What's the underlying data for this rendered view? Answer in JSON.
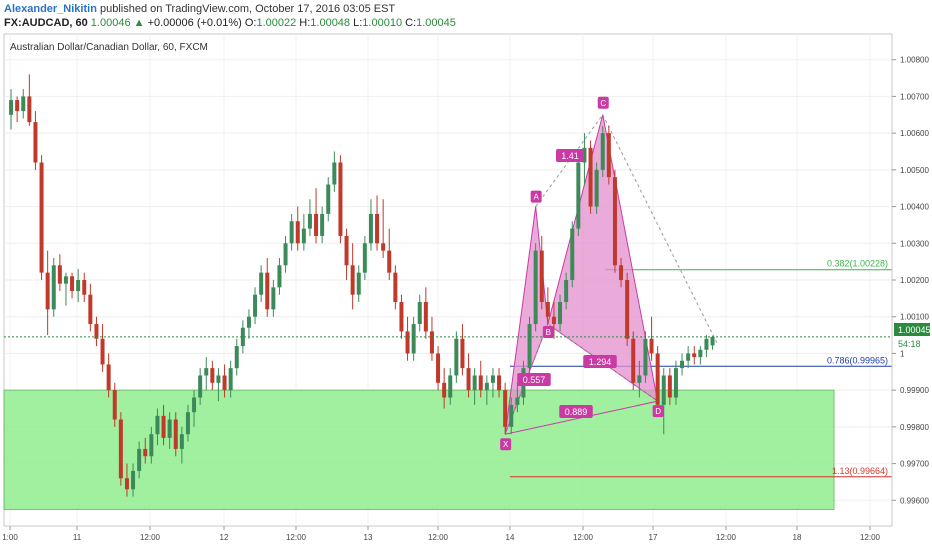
{
  "header": {
    "author": "Alexander_Nikitin",
    "published": " published on TradingView.com, October 17, 2016 03:05 EST",
    "symbol": "FX:AUDCAD, 60",
    "last": "1.00046",
    "arrow": "▲",
    "change": "+0.00006 (+0.01%)",
    "o_label": "O:",
    "o_val": "1.00022",
    "h_label": "H:",
    "h_val": "1.00048",
    "l_label": "L:",
    "l_val": "1.00010",
    "c_label": "C:",
    "c_val": "1.00045"
  },
  "colors": {
    "up": "#3c8a5a",
    "down": "#c0392b",
    "zone": "#90ee90",
    "pattern": "#c93aa5",
    "pattern_fill": "#e48fce",
    "fib_green": "#3bb44a",
    "fib_blue": "#1f3ea8",
    "fib_red": "#d9342b"
  },
  "chart_data": {
    "type": "candlestick",
    "title": "Australian Dollar/Canadian Dollar, 60, FXCM",
    "ylim": [
      0.9953,
      1.0087
    ],
    "y_ticks": [
      "1.00800",
      "1.00700",
      "1.00600",
      "1.00500",
      "1.00400",
      "1.00300",
      "1.00200",
      "1.00100",
      "1",
      "0.99900",
      "0.99800",
      "0.99700",
      "0.99600"
    ],
    "x_ticks": [
      "1:00",
      "11",
      "12:00",
      "12",
      "12:00",
      "13",
      "12:00",
      "14",
      "12:00",
      "17",
      "12:00",
      "18",
      "12:00"
    ],
    "price_label": "1.00045",
    "time_label": "54:18",
    "current_price": 1.00045,
    "candles": [
      [
        1.0065,
        1.0072,
        1.0061,
        1.0069
      ],
      [
        1.0069,
        1.007,
        1.0063,
        1.0066
      ],
      [
        1.0066,
        1.0072,
        1.0064,
        1.007
      ],
      [
        1.007,
        1.0076,
        1.0062,
        1.0063
      ],
      [
        1.0063,
        1.0066,
        1.005,
        1.0052
      ],
      [
        1.0052,
        1.0054,
        1.002,
        1.0022
      ],
      [
        1.0022,
        1.0028,
        1.0005,
        1.0012
      ],
      [
        1.0012,
        1.0026,
        1.001,
        1.0024
      ],
      [
        1.0024,
        1.0027,
        1.0017,
        1.0019
      ],
      [
        1.0019,
        1.0022,
        1.0013,
        1.0021
      ],
      [
        1.0021,
        1.0022,
        1.0015,
        1.0017
      ],
      [
        1.0017,
        1.0023,
        1.0014,
        1.002
      ],
      [
        1.002,
        1.0022,
        1.0014,
        1.0016
      ],
      [
        1.0016,
        1.0019,
        1.0006,
        1.0008
      ],
      [
        1.0008,
        1.001,
        1.0002,
        1.0004
      ],
      [
        1.0004,
        1.0008,
        0.9995,
        0.9997
      ],
      [
        0.9997,
        1.0,
        0.9988,
        0.999
      ],
      [
        0.999,
        0.9992,
        0.998,
        0.9982
      ],
      [
        0.9982,
        0.9984,
        0.9964,
        0.9966
      ],
      [
        0.9966,
        0.997,
        0.9961,
        0.9963
      ],
      [
        0.9963,
        0.997,
        0.9961,
        0.9968
      ],
      [
        0.9968,
        0.9976,
        0.9966,
        0.9974
      ],
      [
        0.9974,
        0.9977,
        0.997,
        0.9972
      ],
      [
        0.9972,
        0.998,
        0.997,
        0.9978
      ],
      [
        0.9978,
        0.9985,
        0.9975,
        0.9983
      ],
      [
        0.9983,
        0.9986,
        0.9975,
        0.9977
      ],
      [
        0.9977,
        0.9984,
        0.9974,
        0.9982
      ],
      [
        0.9982,
        0.9984,
        0.9972,
        0.9974
      ],
      [
        0.9974,
        0.998,
        0.997,
        0.9978
      ],
      [
        0.9978,
        0.9986,
        0.9976,
        0.9984
      ],
      [
        0.9984,
        0.999,
        0.998,
        0.9988
      ],
      [
        0.9988,
        0.9996,
        0.9986,
        0.9994
      ],
      [
        0.9994,
        0.9999,
        0.999,
        0.9996
      ],
      [
        0.9996,
        0.9998,
        0.999,
        0.9992
      ],
      [
        0.9992,
        0.9996,
        0.9987,
        0.9994
      ],
      [
        0.9994,
        0.9997,
        0.9988,
        0.999
      ],
      [
        0.999,
        0.9998,
        0.9988,
        0.9996
      ],
      [
        0.9996,
        1.0004,
        0.9994,
        1.0002
      ],
      [
        1.0002,
        1.0009,
        1.0,
        1.0007
      ],
      [
        1.0007,
        1.0012,
        1.0004,
        1.001
      ],
      [
        1.001,
        1.0018,
        1.0008,
        1.0016
      ],
      [
        1.0016,
        1.0024,
        1.0014,
        1.0022
      ],
      [
        1.0022,
        1.0026,
        1.001,
        1.0012
      ],
      [
        1.0012,
        1.002,
        1.001,
        1.0018
      ],
      [
        1.0018,
        1.0026,
        1.0016,
        1.0024
      ],
      [
        1.0024,
        1.0032,
        1.0022,
        1.003
      ],
      [
        1.003,
        1.0038,
        1.0028,
        1.0036
      ],
      [
        1.0036,
        1.004,
        1.0028,
        1.003
      ],
      [
        1.003,
        1.0038,
        1.0028,
        1.0034
      ],
      [
        1.0034,
        1.0042,
        1.0032,
        1.0038
      ],
      [
        1.0038,
        1.0045,
        1.003,
        1.0032
      ],
      [
        1.0032,
        1.004,
        1.003,
        1.0038
      ],
      [
        1.0038,
        1.0048,
        1.0036,
        1.0046
      ],
      [
        1.0046,
        1.0055,
        1.0044,
        1.0052
      ],
      [
        1.0052,
        1.0054,
        1.003,
        1.0032
      ],
      [
        1.0032,
        1.0034,
        1.002,
        1.0024
      ],
      [
        1.0024,
        1.003,
        1.0012,
        1.0016
      ],
      [
        1.0016,
        1.0024,
        1.0014,
        1.0022
      ],
      [
        1.0022,
        1.0032,
        1.002,
        1.003
      ],
      [
        1.003,
        1.0042,
        1.0028,
        1.0038
      ],
      [
        1.0038,
        1.0043,
        1.0028,
        1.003
      ],
      [
        1.003,
        1.0042,
        1.0026,
        1.0028
      ],
      [
        1.0028,
        1.0034,
        1.002,
        1.0022
      ],
      [
        1.0022,
        1.0024,
        1.0012,
        1.0014
      ],
      [
        1.0014,
        1.0016,
        1.0004,
        1.0006
      ],
      [
        1.0006,
        1.001,
        0.9998,
        1.0
      ],
      [
        1.0,
        1.001,
        0.9998,
        1.0008
      ],
      [
        1.0008,
        1.0016,
        1.0006,
        1.0014
      ],
      [
        1.0014,
        1.0018,
        1.0004,
        1.0006
      ],
      [
        1.0006,
        1.001,
        0.9998,
        1.0
      ],
      [
        1.0,
        1.0002,
        0.999,
        0.9992
      ],
      [
        0.9992,
        0.9996,
        0.9985,
        0.9988
      ],
      [
        0.9988,
        0.9996,
        0.9986,
        0.9994
      ],
      [
        0.9994,
        1.0006,
        0.9992,
        1.0004
      ],
      [
        1.0004,
        1.0008,
        0.9994,
        0.9996
      ],
      [
        0.9996,
        1.0,
        0.9988,
        0.999
      ],
      [
        0.999,
        0.9996,
        0.9986,
        0.9994
      ],
      [
        0.9994,
        0.9998,
        0.9988,
        0.999
      ],
      [
        0.999,
        0.9994,
        0.9986,
        0.9992
      ],
      [
        0.9992,
        0.9996,
        0.9988,
        0.9994
      ],
      [
        0.9994,
        0.9996,
        0.9988,
        0.999
      ],
      [
        0.999,
        0.9992,
        0.9978,
        0.998
      ],
      [
        0.998,
        0.9988,
        0.9978,
        0.9986
      ],
      [
        0.9986,
        0.9992,
        0.9984,
        0.9988
      ],
      [
        0.9988,
        0.9998,
        0.9986,
        0.9996
      ],
      [
        0.9996,
        1.001,
        0.9994,
        1.0008
      ],
      [
        1.0008,
        1.003,
        1.0006,
        1.0028
      ],
      [
        1.0028,
        1.0032,
        1.0012,
        1.0014
      ],
      [
        1.0014,
        1.0018,
        1.0008,
        1.001
      ],
      [
        1.001,
        1.0014,
        1.0004,
        1.0008
      ],
      [
        1.0008,
        1.0016,
        1.0006,
        1.0014
      ],
      [
        1.0014,
        1.0022,
        1.0012,
        1.002
      ],
      [
        1.002,
        1.0036,
        1.0018,
        1.0034
      ],
      [
        1.0034,
        1.0054,
        1.0032,
        1.0052
      ],
      [
        1.0052,
        1.006,
        1.0046,
        1.0056
      ],
      [
        1.0056,
        1.0058,
        1.0038,
        1.004
      ],
      [
        1.004,
        1.0052,
        1.0038,
        1.005
      ],
      [
        1.005,
        1.0062,
        1.0048,
        1.006
      ],
      [
        1.006,
        1.0062,
        1.0046,
        1.0048
      ],
      [
        1.0048,
        1.005,
        1.0022,
        1.0024
      ],
      [
        1.0024,
        1.0026,
        1.0018,
        1.002
      ],
      [
        1.002,
        1.0022,
        1.0002,
        1.0004
      ],
      [
        1.0004,
        1.0006,
        0.999,
        0.9992
      ],
      [
        0.9992,
        0.9998,
        0.9988,
        0.9994
      ],
      [
        0.9994,
        1.0006,
        0.9992,
        1.0004
      ],
      [
        1.0004,
        1.001,
        0.9998,
        1.0
      ],
      [
        1.0,
        1.0002,
        0.9984,
        0.9986
      ],
      [
        0.9986,
        0.9996,
        0.9978,
        0.9994
      ],
      [
        0.9994,
        0.9996,
        0.9986,
        0.9988
      ],
      [
        0.9988,
        0.9998,
        0.9986,
        0.9996
      ],
      [
        0.9996,
        1.0,
        0.9994,
        0.9998
      ],
      [
        0.9998,
        1.0002,
        0.9996,
        1.0
      ],
      [
        1.0,
        1.0002,
        0.9997,
        0.9999
      ],
      [
        0.9999,
        1.0002,
        0.9997,
        1.0001
      ],
      [
        1.0001,
        1.0005,
        0.9999,
        1.0004
      ],
      [
        1.00022,
        1.00048,
        1.0001,
        1.00045
      ]
    ],
    "zone": {
      "y1": 0.999,
      "y2": 0.99575
    },
    "fib_levels": [
      {
        "label": "0.382(1.00228)",
        "value": 1.00228,
        "color": "green"
      },
      {
        "label": "0.786(0.99965)",
        "value": 0.99965,
        "color": "blue"
      },
      {
        "label": "1.13(0.99664)",
        "value": 0.99664,
        "color": "red"
      }
    ],
    "pattern_points": [
      {
        "label": "X",
        "bar": 81,
        "price": 0.9978
      },
      {
        "label": "A",
        "bar": 86,
        "price": 1.004
      },
      {
        "label": "B",
        "bar": 88,
        "price": 1.0008
      },
      {
        "label": "C",
        "bar": 97,
        "price": 1.0065
      },
      {
        "label": "D",
        "bar": 106,
        "price": 0.9987
      }
    ],
    "ratios": [
      {
        "label": "0.557",
        "between": [
          "X",
          "B"
        ]
      },
      {
        "label": "1.41",
        "between": [
          "A",
          "C"
        ]
      },
      {
        "label": "1.294",
        "between": [
          "B",
          "D"
        ]
      },
      {
        "label": "0.889",
        "between": [
          "X",
          "D"
        ]
      }
    ]
  }
}
